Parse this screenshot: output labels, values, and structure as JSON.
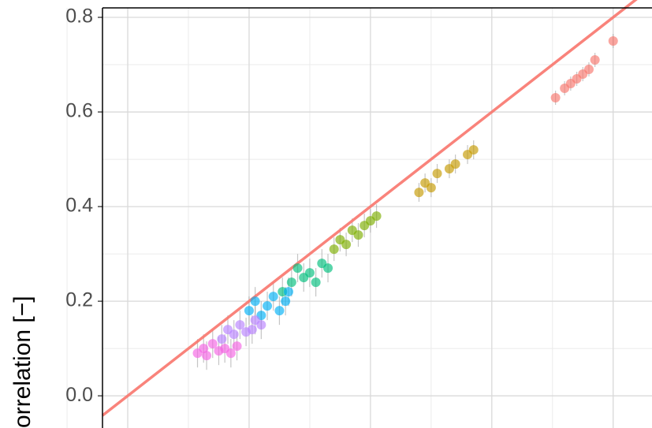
{
  "chart_data": {
    "type": "scatter",
    "y_label": "orrelation [−]",
    "xlim": [
      -0.0416,
      0.864
    ],
    "xticks": [
      0,
      0.2,
      0.4,
      0.6,
      0.8
    ],
    "ylim": [
      -0.068,
      0.82
    ],
    "yticks": [
      0,
      0.2,
      0.4,
      0.6,
      0.8
    ],
    "yticks_labels": [
      "0.0",
      "0.2",
      "0.4",
      "0.6",
      "0.8"
    ],
    "grid": true,
    "reference_line": {
      "slope": 1,
      "intercept": 0,
      "color": "#f8766d"
    },
    "series": [
      {
        "color": "#f8766d",
        "x": [
          0.705,
          0.72,
          0.73,
          0.74,
          0.75,
          0.76,
          0.77,
          0.8
        ],
        "values": [
          0.63,
          0.65,
          0.66,
          0.67,
          0.68,
          0.69,
          0.71,
          0.75
        ],
        "errors": [
          0.015,
          0.015,
          0.015,
          0.015,
          0.015,
          0.015,
          0.015,
          0.015
        ]
      },
      {
        "color": "#c49a00",
        "x": [
          0.48,
          0.49,
          0.5,
          0.51,
          0.53,
          0.54,
          0.56,
          0.57
        ],
        "values": [
          0.43,
          0.45,
          0.44,
          0.47,
          0.48,
          0.49,
          0.51,
          0.52
        ],
        "errors": [
          0.02,
          0.02,
          0.02,
          0.02,
          0.02,
          0.02,
          0.02,
          0.02
        ]
      },
      {
        "color": "#7cae00",
        "x": [
          0.34,
          0.35,
          0.36,
          0.37,
          0.38,
          0.39,
          0.4,
          0.41
        ],
        "values": [
          0.31,
          0.33,
          0.32,
          0.35,
          0.34,
          0.36,
          0.37,
          0.38
        ],
        "errors": [
          0.025,
          0.025,
          0.025,
          0.025,
          0.025,
          0.025,
          0.025,
          0.025
        ]
      },
      {
        "color": "#00bf7d",
        "x": [
          0.255,
          0.27,
          0.28,
          0.29,
          0.3,
          0.31,
          0.32,
          0.33
        ],
        "values": [
          0.22,
          0.24,
          0.27,
          0.25,
          0.26,
          0.24,
          0.28,
          0.27
        ],
        "errors": [
          0.03,
          0.03,
          0.03,
          0.03,
          0.03,
          0.03,
          0.03,
          0.03
        ]
      },
      {
        "color": "#00b0f6",
        "x": [
          0.2,
          0.21,
          0.22,
          0.23,
          0.24,
          0.25,
          0.26,
          0.265
        ],
        "values": [
          0.18,
          0.2,
          0.17,
          0.19,
          0.21,
          0.18,
          0.2,
          0.22
        ],
        "errors": [
          0.03,
          0.03,
          0.03,
          0.03,
          0.03,
          0.03,
          0.03,
          0.03
        ]
      },
      {
        "color": "#b983ff",
        "x": [
          0.155,
          0.165,
          0.175,
          0.185,
          0.195,
          0.205,
          0.21,
          0.22
        ],
        "values": [
          0.12,
          0.14,
          0.13,
          0.15,
          0.135,
          0.14,
          0.16,
          0.15
        ],
        "errors": [
          0.03,
          0.03,
          0.03,
          0.03,
          0.03,
          0.03,
          0.03,
          0.03
        ]
      },
      {
        "color": "#f564e3",
        "x": [
          0.115,
          0.125,
          0.13,
          0.14,
          0.15,
          0.16,
          0.17,
          0.18
        ],
        "values": [
          0.09,
          0.1,
          0.085,
          0.11,
          0.095,
          0.1,
          0.09,
          0.105
        ],
        "errors": [
          0.03,
          0.03,
          0.03,
          0.03,
          0.03,
          0.03,
          0.03,
          0.03
        ]
      }
    ]
  }
}
